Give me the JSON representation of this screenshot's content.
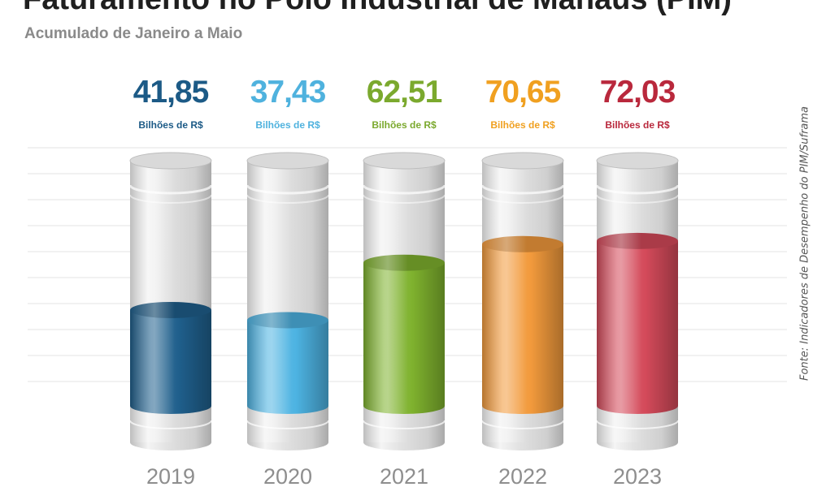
{
  "title": "Faturamento no Polo Industrial de Manaus (PIM)",
  "subtitle": "Acumulado de Janeiro a Maio",
  "source": "Fonte: Indicadores de Desempenho do PIM/Suframa",
  "chart_data": {
    "type": "bar",
    "categories": [
      "2019",
      "2020",
      "2021",
      "2022",
      "2023"
    ],
    "values": [
      41.85,
      37.43,
      62.51,
      70.65,
      72.03
    ],
    "value_labels": [
      "41,85",
      "37,43",
      "62,51",
      "70,65",
      "72,03"
    ],
    "unit_label": "Bilhões de R$",
    "colors": [
      "#1f5f8c",
      "#4db3e2",
      "#7fb22e",
      "#f29a3c",
      "#d44a5a"
    ],
    "label_colors": [
      "#1c5a86",
      "#4fb2de",
      "#7ba92e",
      "#f0a020",
      "#b9283c"
    ],
    "ylim": [
      0,
      100
    ],
    "grid": true,
    "legend": "none"
  }
}
